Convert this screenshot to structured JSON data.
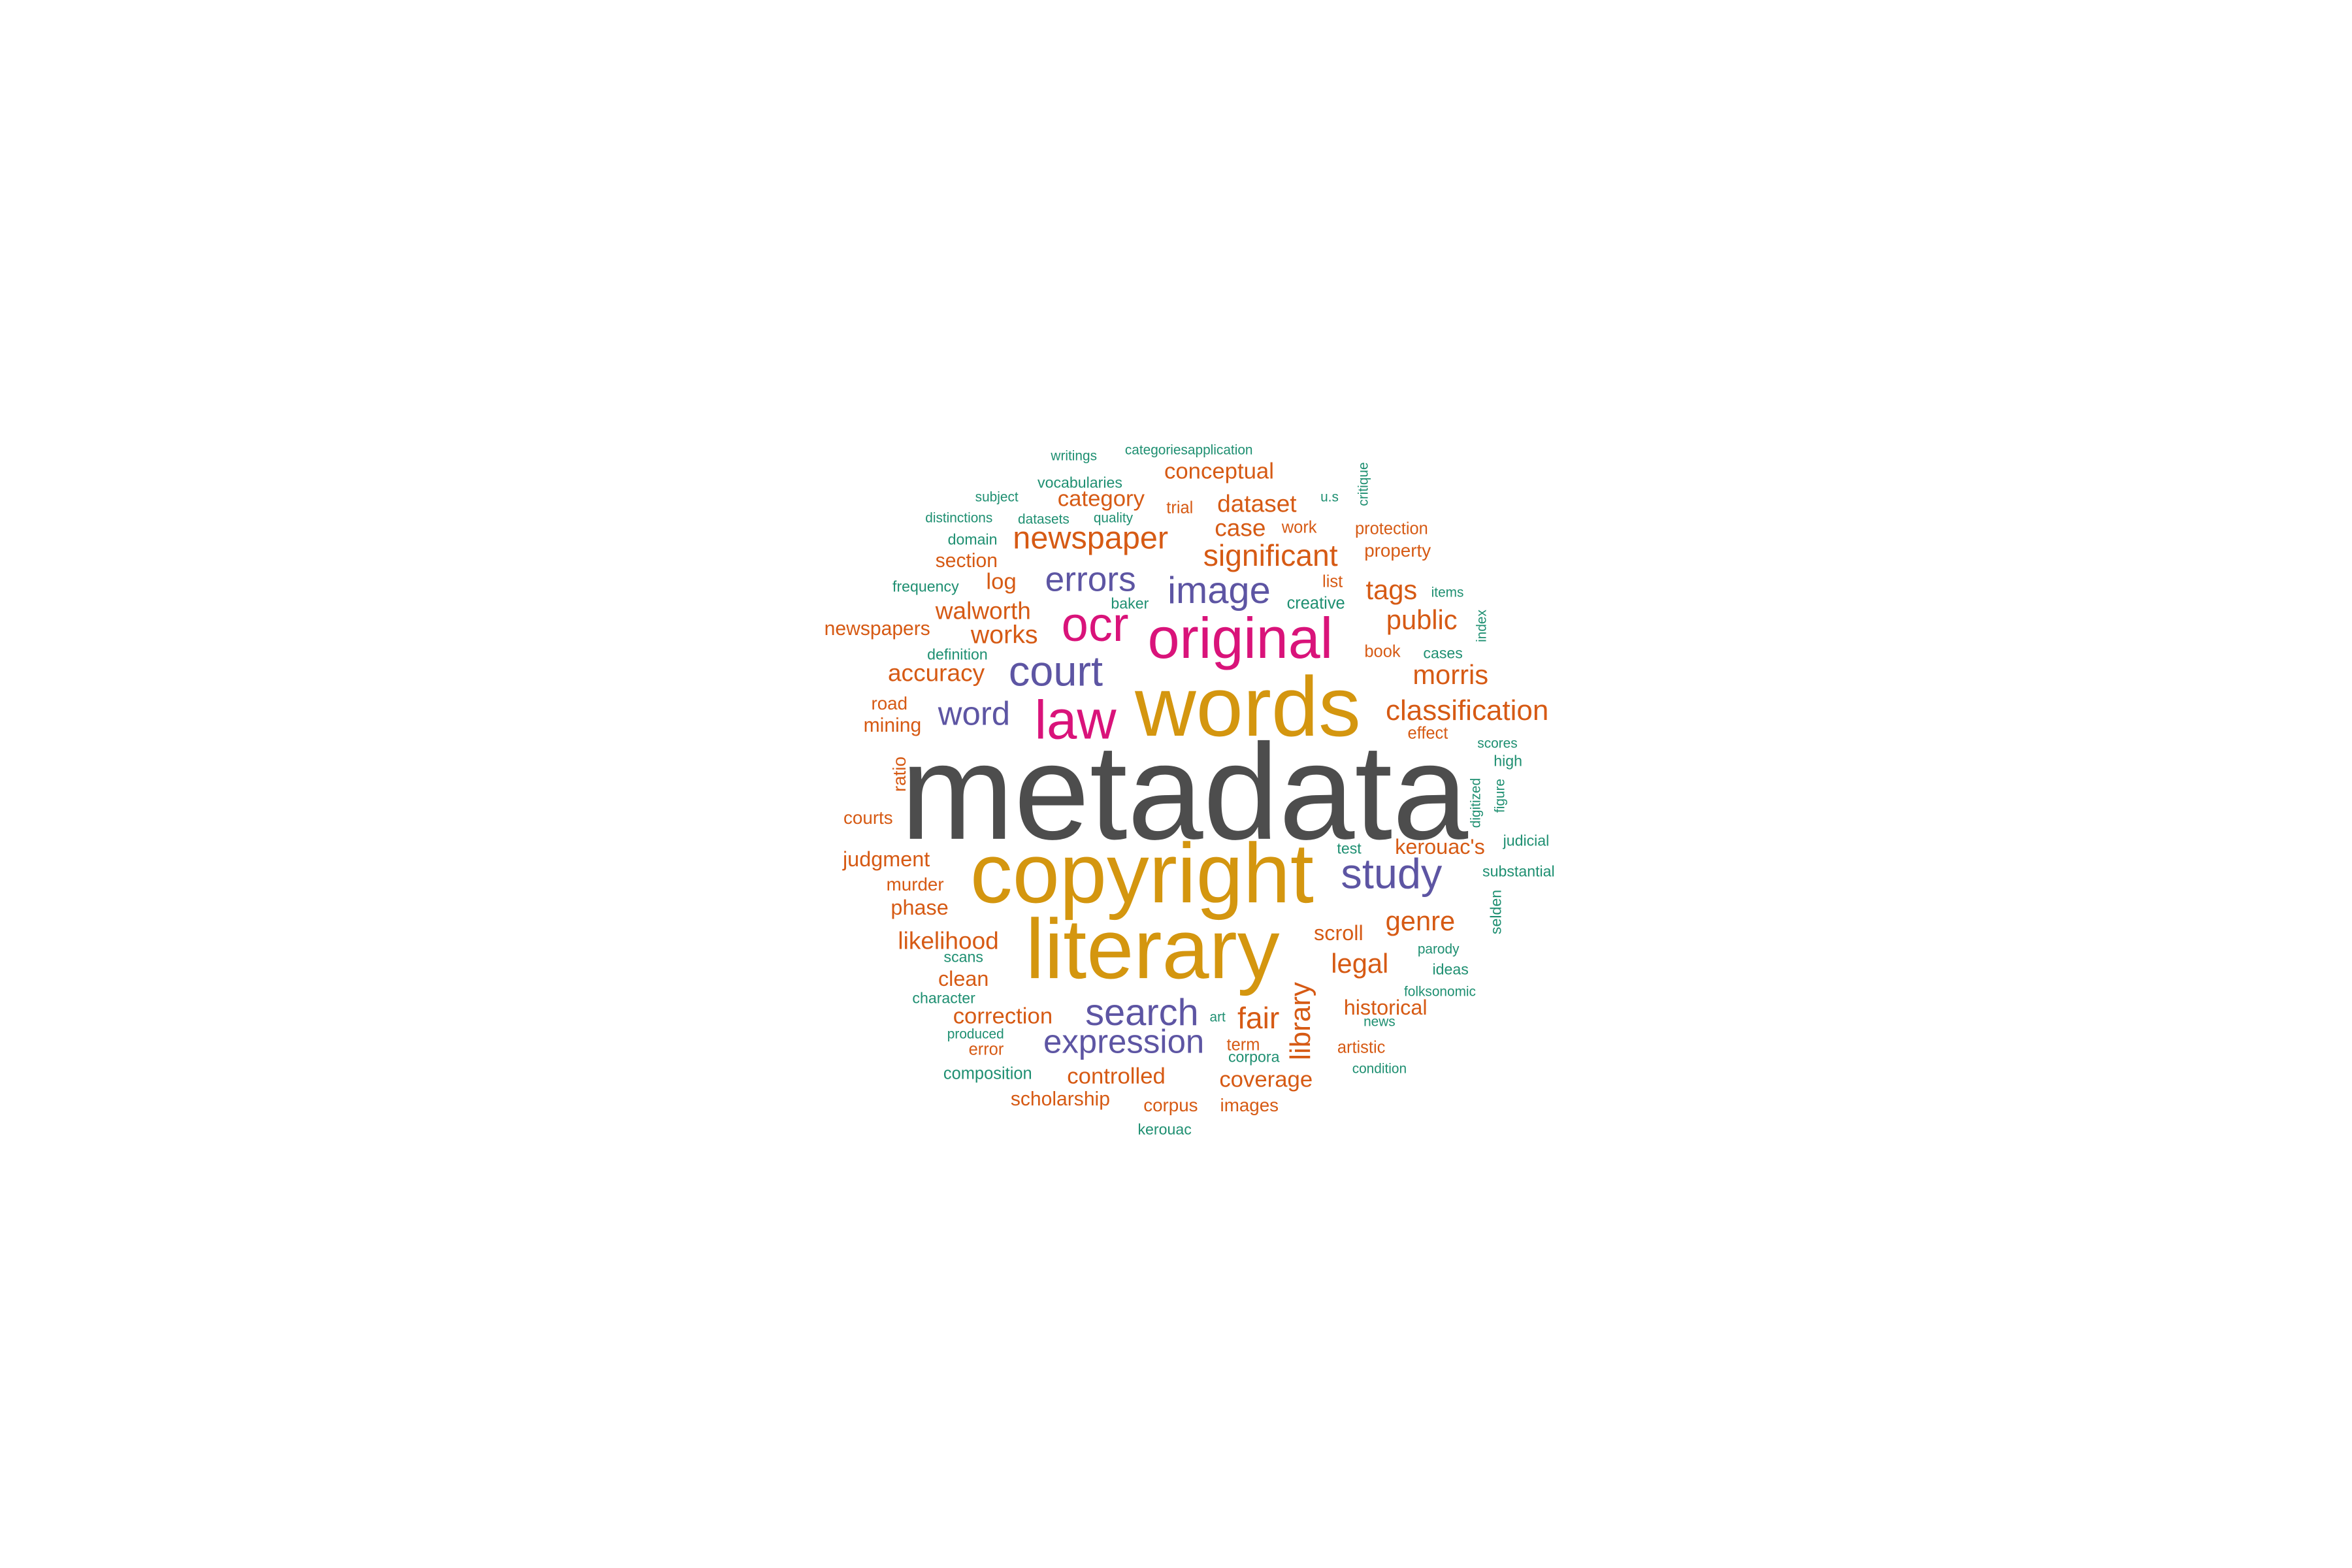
{
  "colors": {
    "gray": "#4d4d4d",
    "gold": "#d4960f",
    "magenta": "#d9137a",
    "purple": "#5d55a3",
    "orange": "#d65a14",
    "teal": "#1e8f71"
  },
  "words": [
    {
      "text": "metadata",
      "color": "gray"
    },
    {
      "text": "copyright",
      "color": "gold"
    },
    {
      "text": "literary",
      "color": "gold"
    },
    {
      "text": "words",
      "color": "gold"
    },
    {
      "text": "original",
      "color": "magenta"
    },
    {
      "text": "law",
      "color": "magenta"
    },
    {
      "text": "ocr",
      "color": "magenta"
    },
    {
      "text": "study",
      "color": "purple"
    },
    {
      "text": "court",
      "color": "purple"
    },
    {
      "text": "image",
      "color": "purple"
    },
    {
      "text": "errors",
      "color": "purple"
    },
    {
      "text": "search",
      "color": "purple"
    },
    {
      "text": "expression",
      "color": "purple"
    },
    {
      "text": "word",
      "color": "purple"
    },
    {
      "text": "newspaper",
      "color": "orange"
    },
    {
      "text": "significant",
      "color": "orange"
    },
    {
      "text": "classification",
      "color": "orange"
    },
    {
      "text": "library",
      "color": "orange"
    },
    {
      "text": "fair",
      "color": "orange"
    },
    {
      "text": "morris",
      "color": "orange"
    },
    {
      "text": "public",
      "color": "orange"
    },
    {
      "text": "tags",
      "color": "orange"
    },
    {
      "text": "works",
      "color": "orange"
    },
    {
      "text": "walworth",
      "color": "orange"
    },
    {
      "text": "accuracy",
      "color": "orange"
    },
    {
      "text": "genre",
      "color": "orange"
    },
    {
      "text": "legal",
      "color": "orange"
    },
    {
      "text": "likelihood",
      "color": "orange"
    },
    {
      "text": "dataset",
      "color": "orange"
    },
    {
      "text": "case",
      "color": "orange"
    },
    {
      "text": "conceptual",
      "color": "orange"
    },
    {
      "text": "category",
      "color": "orange"
    },
    {
      "text": "controlled",
      "color": "orange"
    },
    {
      "text": "correction",
      "color": "orange"
    },
    {
      "text": "coverage",
      "color": "orange"
    },
    {
      "text": "historical",
      "color": "orange"
    },
    {
      "text": "judgment",
      "color": "orange"
    },
    {
      "text": "kerouac's",
      "color": "orange"
    },
    {
      "text": "scroll",
      "color": "orange"
    },
    {
      "text": "log",
      "color": "orange"
    },
    {
      "text": "clean",
      "color": "orange"
    },
    {
      "text": "newspapers",
      "color": "orange"
    },
    {
      "text": "mining",
      "color": "orange"
    },
    {
      "text": "section",
      "color": "orange"
    },
    {
      "text": "phase",
      "color": "orange"
    },
    {
      "text": "murder",
      "color": "orange"
    },
    {
      "text": "courts",
      "color": "orange"
    },
    {
      "text": "road",
      "color": "orange"
    },
    {
      "text": "ratio",
      "color": "orange"
    },
    {
      "text": "scholarship",
      "color": "orange"
    },
    {
      "text": "property",
      "color": "orange"
    },
    {
      "text": "protection",
      "color": "orange"
    },
    {
      "text": "work",
      "color": "orange"
    },
    {
      "text": "trial",
      "color": "orange"
    },
    {
      "text": "book",
      "color": "orange"
    },
    {
      "text": "effect",
      "color": "orange"
    },
    {
      "text": "artistic",
      "color": "orange"
    },
    {
      "text": "images",
      "color": "orange"
    },
    {
      "text": "corpus",
      "color": "orange"
    },
    {
      "text": "term",
      "color": "orange"
    },
    {
      "text": "list",
      "color": "orange"
    },
    {
      "text": "error",
      "color": "orange"
    },
    {
      "text": "writings",
      "color": "teal"
    },
    {
      "text": "categoriesapplication",
      "color": "teal"
    },
    {
      "text": "vocabularies",
      "color": "teal"
    },
    {
      "text": "subject",
      "color": "teal"
    },
    {
      "text": "u.s",
      "color": "teal"
    },
    {
      "text": "critique",
      "color": "teal"
    },
    {
      "text": "distinctions",
      "color": "teal"
    },
    {
      "text": "datasets",
      "color": "teal"
    },
    {
      "text": "quality",
      "color": "teal"
    },
    {
      "text": "domain",
      "color": "teal"
    },
    {
      "text": "frequency",
      "color": "teal"
    },
    {
      "text": "items",
      "color": "teal"
    },
    {
      "text": "baker",
      "color": "teal"
    },
    {
      "text": "creative",
      "color": "teal"
    },
    {
      "text": "index",
      "color": "teal"
    },
    {
      "text": "definition",
      "color": "teal"
    },
    {
      "text": "cases",
      "color": "teal"
    },
    {
      "text": "scores",
      "color": "teal"
    },
    {
      "text": "high",
      "color": "teal"
    },
    {
      "text": "digitized",
      "color": "teal"
    },
    {
      "text": "figure",
      "color": "teal"
    },
    {
      "text": "judicial",
      "color": "teal"
    },
    {
      "text": "test",
      "color": "teal"
    },
    {
      "text": "substantial",
      "color": "teal"
    },
    {
      "text": "selden",
      "color": "teal"
    },
    {
      "text": "parody",
      "color": "teal"
    },
    {
      "text": "scans",
      "color": "teal"
    },
    {
      "text": "ideas",
      "color": "teal"
    },
    {
      "text": "character",
      "color": "teal"
    },
    {
      "text": "folksonomic",
      "color": "teal"
    },
    {
      "text": "news",
      "color": "teal"
    },
    {
      "text": "art",
      "color": "teal"
    },
    {
      "text": "produced",
      "color": "teal"
    },
    {
      "text": "corpora",
      "color": "teal"
    },
    {
      "text": "composition",
      "color": "teal"
    },
    {
      "text": "condition",
      "color": "teal"
    },
    {
      "text": "kerouac",
      "color": "teal"
    }
  ]
}
